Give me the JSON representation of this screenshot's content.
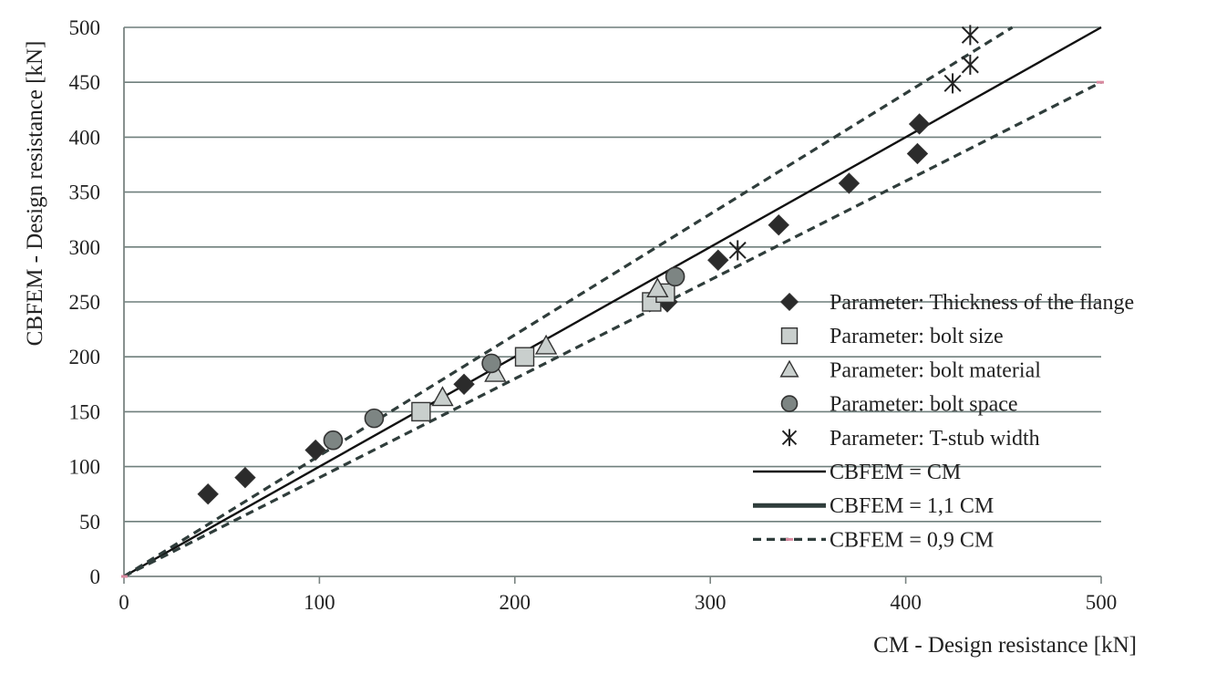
{
  "chart_data": {
    "type": "scatter",
    "xlabel": "CM - Design resistance [kN]",
    "ylabel": "CBFEM - Design resistance [kN]",
    "xlim": [
      0,
      500
    ],
    "ylim": [
      0,
      500
    ],
    "xticks": [
      0,
      100,
      200,
      300,
      400,
      500
    ],
    "yticks": [
      0,
      50,
      100,
      150,
      200,
      250,
      300,
      350,
      400,
      450,
      500
    ],
    "grid": "horizontal",
    "legend_position": "right",
    "series": [
      {
        "name": "Parameter: Thickness of the flange",
        "marker": "diamond",
        "color": "#2b2b2b",
        "points": [
          [
            43,
            75
          ],
          [
            62,
            90
          ],
          [
            98,
            115
          ],
          [
            174,
            175
          ],
          [
            278,
            250
          ],
          [
            304,
            288
          ],
          [
            335,
            320
          ],
          [
            371,
            358
          ],
          [
            406,
            385
          ],
          [
            407,
            412
          ]
        ]
      },
      {
        "name": "Parameter: bolt size",
        "marker": "square",
        "color": "#c9cfcd",
        "points": [
          [
            152,
            150
          ],
          [
            205,
            200
          ],
          [
            270,
            250
          ],
          [
            277,
            258
          ]
        ]
      },
      {
        "name": "Parameter: bolt material",
        "marker": "triangle",
        "color": "#c9cfcd",
        "points": [
          [
            163,
            163
          ],
          [
            190,
            185
          ],
          [
            216,
            210
          ],
          [
            273,
            262
          ]
        ]
      },
      {
        "name": "Parameter: bolt space",
        "marker": "circle",
        "color": "#7d8583",
        "points": [
          [
            107,
            124
          ],
          [
            128,
            144
          ],
          [
            188,
            194
          ],
          [
            282,
            273
          ]
        ]
      },
      {
        "name": "Parameter: T-stub width",
        "marker": "asterisk",
        "color": "#222222",
        "points": [
          [
            314,
            297
          ],
          [
            424,
            449
          ],
          [
            433,
            466
          ],
          [
            433,
            493
          ]
        ]
      }
    ],
    "lines": [
      {
        "name": "CBFEM = CM",
        "slope": 1.0,
        "style": "solid-thin",
        "color": "#111111"
      },
      {
        "name": "CBFEM = 1,1 CM",
        "slope": 1.1,
        "style": "dashed",
        "color": "#2f3d3b"
      },
      {
        "name": "CBFEM = 0,9 CM",
        "slope": 0.9,
        "style": "dashed",
        "color": "#2f3d3b"
      }
    ],
    "legend_entries": [
      {
        "label": "Parameter: Thickness of the flange",
        "symbol": "diamond"
      },
      {
        "label": "Parameter: bolt size",
        "symbol": "square"
      },
      {
        "label": "Parameter: bolt material",
        "symbol": "triangle"
      },
      {
        "label": "Parameter: bolt space",
        "symbol": "circle"
      },
      {
        "label": "Parameter: T-stub width",
        "symbol": "asterisk"
      },
      {
        "label": "CBFEM = CM",
        "symbol": "line-thin"
      },
      {
        "label": "CBFEM = 1,1 CM",
        "symbol": "line-thick"
      },
      {
        "label": "CBFEM = 0,9 CM",
        "symbol": "line-dashed"
      }
    ]
  }
}
